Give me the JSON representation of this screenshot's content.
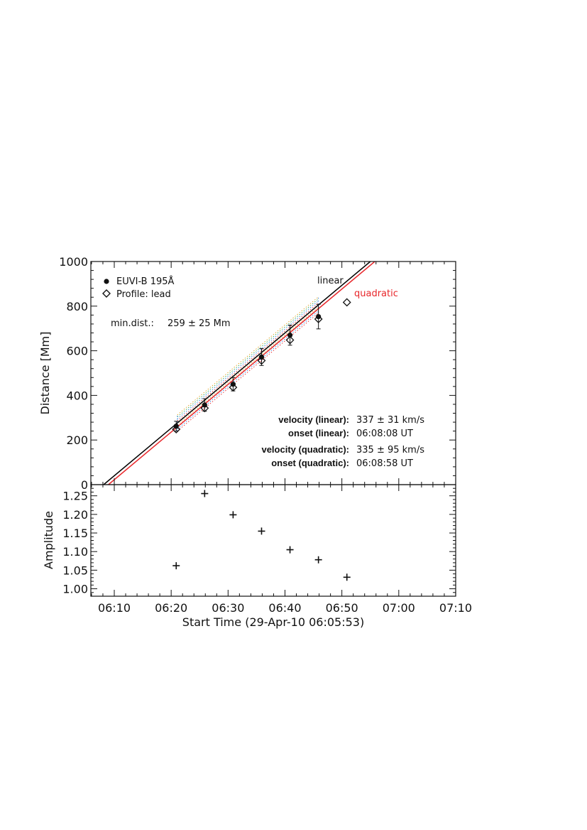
{
  "chart_data": [
    {
      "type": "scatter",
      "panel": "top",
      "title": "",
      "xlabel": "",
      "ylabel": "Distance [Mm]",
      "x_unit": "minutes after 06:05:53",
      "xlim": [
        0,
        64.12
      ],
      "ylim": [
        0,
        1000
      ],
      "y_ticks": [
        0,
        200,
        400,
        600,
        800,
        1000
      ],
      "grid": false,
      "legend_position": "top-left",
      "series": [
        {
          "name": "EUVI-B 195Å",
          "marker": "filled-circle",
          "x": [
            "06:20:53",
            "06:25:53",
            "06:30:53",
            "06:35:53",
            "06:40:53",
            "06:45:53"
          ],
          "y": [
            262,
            357,
            450,
            572,
            670,
            753
          ],
          "yerr": [
            22,
            28,
            30,
            38,
            45,
            55
          ]
        },
        {
          "name": "Profile: lead",
          "marker": "open-diamond",
          "x": [
            "06:20:53",
            "06:25:53",
            "06:30:53",
            "06:35:53",
            "06:40:53",
            "06:45:53",
            "06:50:53"
          ],
          "y": [
            248,
            343,
            436,
            556,
            648,
            742,
            817
          ]
        }
      ],
      "fits": [
        {
          "name": "linear",
          "color": "#000000",
          "x": [
            "06:08:08",
            "06:55:00"
          ],
          "y": [
            0,
            1000
          ]
        },
        {
          "name": "quadratic",
          "color": "#e8262a",
          "x": [
            "06:08:58",
            "06:55:47"
          ],
          "y": [
            0,
            1000
          ]
        }
      ],
      "annotations": {
        "min_dist_label": "min.dist.:",
        "min_dist_value": "259 ± 25 Mm",
        "velocity_linear_label": "velocity (linear):",
        "velocity_linear_value": "337  ± 31  km/s",
        "onset_linear_label": "onset (linear):",
        "onset_linear_value": "06:08:08  UT",
        "velocity_quadratic_label": "velocity (quadratic):",
        "velocity_quadratic_value": "335  ± 95  km/s",
        "onset_quadratic_label": "onset (quadratic):",
        "onset_quadratic_value": "06:08:58  UT"
      }
    },
    {
      "type": "scatter",
      "panel": "bottom",
      "title": "",
      "xlabel": "Start Time (29-Apr-10 06:05:53)",
      "ylabel": "Amplitude",
      "x_unit": "minutes after 06:05:53",
      "xlim": [
        0,
        64.12
      ],
      "ylim": [
        0.98,
        1.28
      ],
      "y_ticks": [
        1.0,
        1.05,
        1.1,
        1.15,
        1.2,
        1.25
      ],
      "x_ticks": [
        "06:10",
        "06:20",
        "06:30",
        "06:40",
        "06:50",
        "07:00",
        "07:10"
      ],
      "grid": false,
      "series": [
        {
          "name": "",
          "marker": "plus",
          "x": [
            "06:20:53",
            "06:25:53",
            "06:30:53",
            "06:35:53",
            "06:40:53",
            "06:45:53",
            "06:50:53"
          ],
          "y": [
            1.062,
            1.256,
            1.199,
            1.155,
            1.105,
            1.078,
            1.031
          ]
        }
      ]
    }
  ],
  "colors": {
    "linear_fit": "#000000",
    "quadratic_fit": "#e8262a",
    "axes": "#111111",
    "band_lines": [
      "#e8262a",
      "#2a7de1",
      "#2fa84f",
      "#e0a020"
    ]
  }
}
